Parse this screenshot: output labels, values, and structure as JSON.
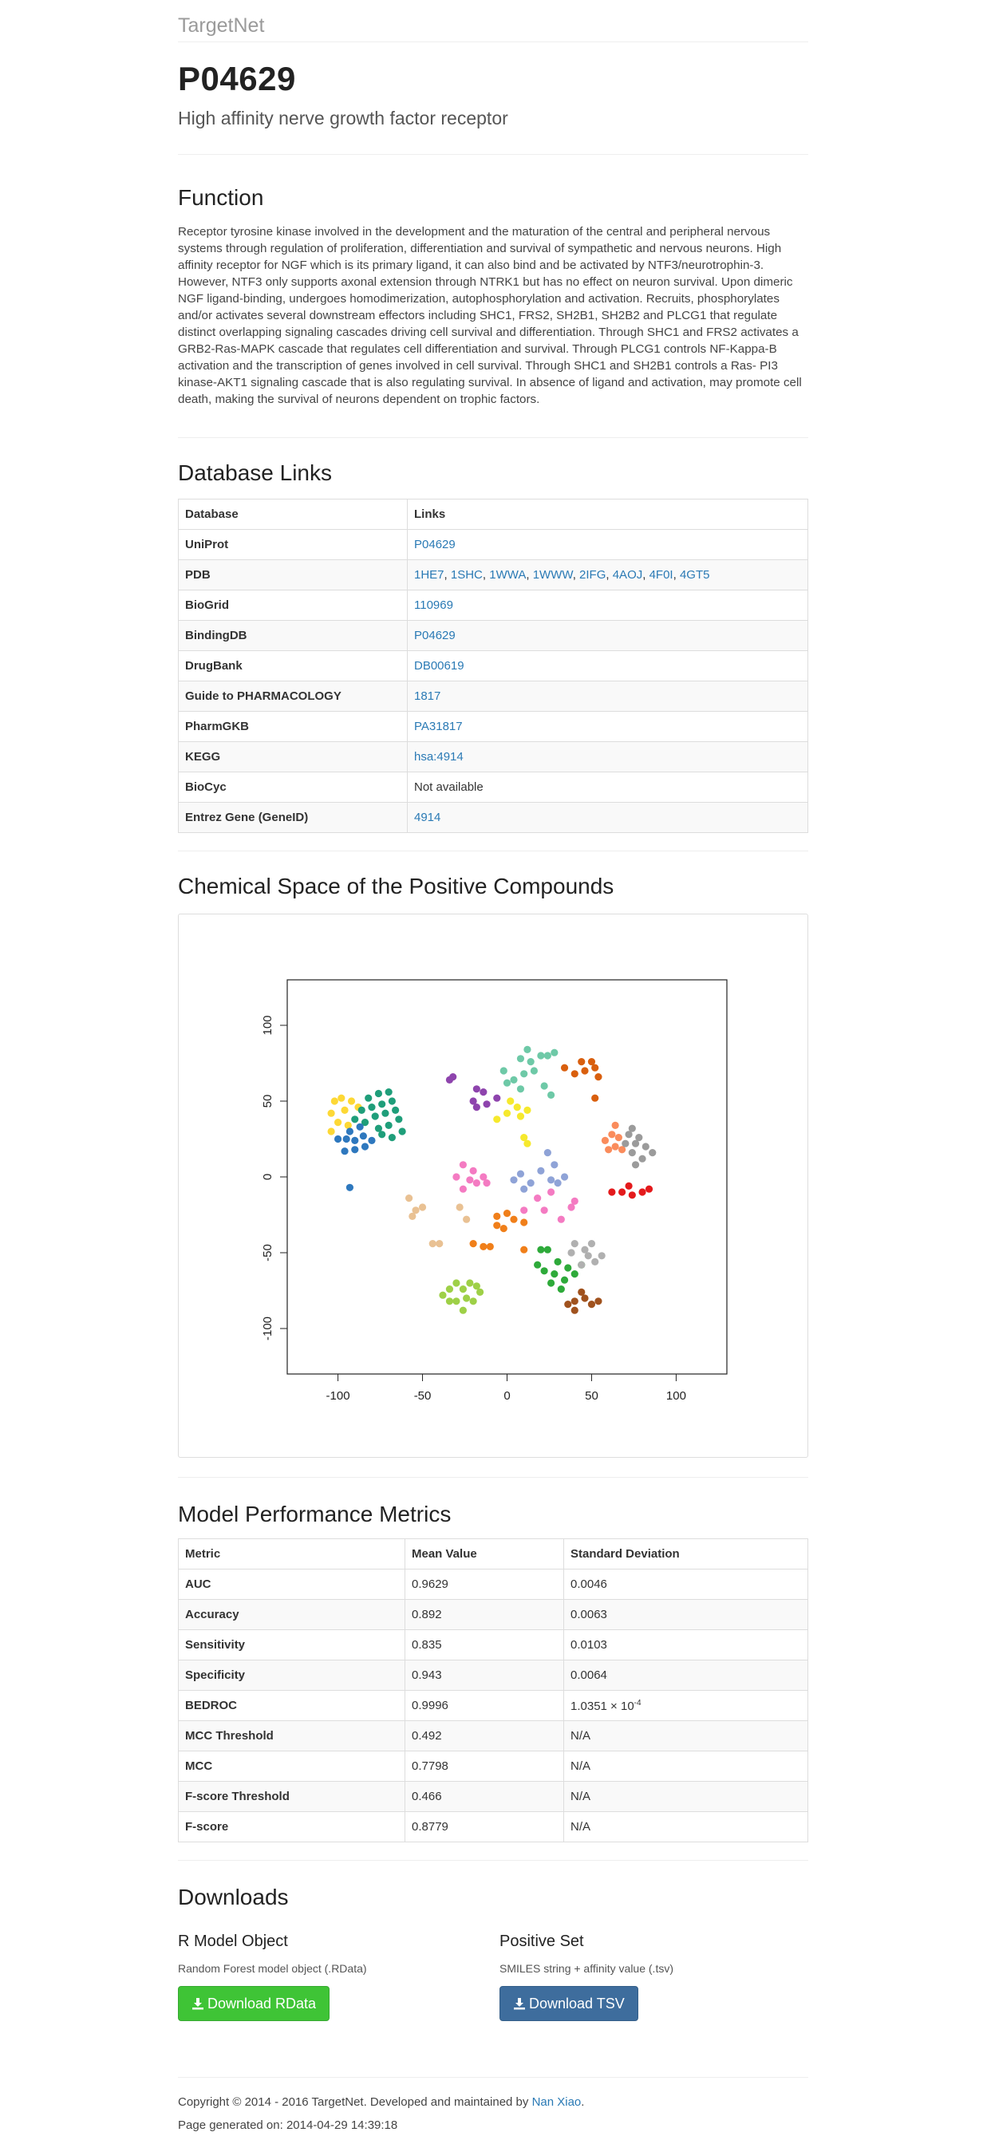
{
  "brand": "TargetNet",
  "protein": {
    "accession": "P04629",
    "name": "High affinity nerve growth factor receptor"
  },
  "function": {
    "heading": "Function",
    "text": "Receptor tyrosine kinase involved in the development and the maturation of the central and peripheral nervous systems through regulation of proliferation, differentiation and survival of sympathetic and nervous neurons. High affinity receptor for NGF which is its primary ligand, it can also bind and be activated by NTF3/neurotrophin-3. However, NTF3 only supports axonal extension through NTRK1 but has no effect on neuron survival. Upon dimeric NGF ligand-binding, undergoes homodimerization, autophosphorylation and activation. Recruits, phosphorylates and/or activates several downstream effectors including SHC1, FRS2, SH2B1, SH2B2 and PLCG1 that regulate distinct overlapping signaling cascades driving cell survival and differentiation. Through SHC1 and FRS2 activates a GRB2-Ras-MAPK cascade that regulates cell differentiation and survival. Through PLCG1 controls NF-Kappa-B activation and the transcription of genes involved in cell survival. Through SHC1 and SH2B1 controls a Ras- PI3 kinase-AKT1 signaling cascade that is also regulating survival. In absence of ligand and activation, may promote cell death, making the survival of neurons dependent on trophic factors."
  },
  "db_links": {
    "heading": "Database Links",
    "col_database": "Database",
    "col_links": "Links",
    "rows": [
      {
        "db": "UniProt",
        "links": [
          "P04629"
        ]
      },
      {
        "db": "PDB",
        "links": [
          "1HE7",
          "1SHC",
          "1WWA",
          "1WWW",
          "2IFG",
          "4AOJ",
          "4F0I",
          "4GT5"
        ]
      },
      {
        "db": "BioGrid",
        "links": [
          "110969"
        ]
      },
      {
        "db": "BindingDB",
        "links": [
          "P04629"
        ]
      },
      {
        "db": "DrugBank",
        "links": [
          "DB00619"
        ]
      },
      {
        "db": "Guide to PHARMACOLOGY",
        "links": [
          "1817"
        ]
      },
      {
        "db": "PharmGKB",
        "links": [
          "PA31817"
        ]
      },
      {
        "db": "KEGG",
        "links": [
          "hsa:4914"
        ]
      },
      {
        "db": "BioCyc",
        "text": "Not available"
      },
      {
        "db": "Entrez Gene (GeneID)",
        "links": [
          "4914"
        ]
      }
    ]
  },
  "chemical_space": {
    "heading": "Chemical Space of the Positive Compounds"
  },
  "chart_data": {
    "type": "scatter",
    "title": "",
    "xlabel": "",
    "ylabel": "",
    "xlim": [
      -130,
      130
    ],
    "ylim": [
      -130,
      130
    ],
    "x_ticks": [
      -100,
      -50,
      0,
      50,
      100
    ],
    "y_ticks": [
      -100,
      -50,
      0,
      50,
      100
    ],
    "grid": false,
    "series": [
      {
        "color": "#fdd835",
        "points": [
          [
            -102,
            50
          ],
          [
            -98,
            52
          ],
          [
            -104,
            42
          ],
          [
            -96,
            44
          ],
          [
            -100,
            36
          ],
          [
            -104,
            30
          ],
          [
            -94,
            34
          ],
          [
            -92,
            50
          ],
          [
            -88,
            46
          ]
        ]
      },
      {
        "color": "#1f9e7a",
        "points": [
          [
            -82,
            52
          ],
          [
            -76,
            55
          ],
          [
            -70,
            56
          ],
          [
            -68,
            50
          ],
          [
            -74,
            48
          ],
          [
            -80,
            46
          ],
          [
            -86,
            44
          ],
          [
            -78,
            40
          ],
          [
            -72,
            42
          ],
          [
            -66,
            44
          ],
          [
            -64,
            38
          ],
          [
            -70,
            34
          ],
          [
            -76,
            32
          ],
          [
            -84,
            36
          ],
          [
            -62,
            30
          ],
          [
            -68,
            26
          ],
          [
            -74,
            28
          ],
          [
            -90,
            38
          ]
        ]
      },
      {
        "color": "#2e78be",
        "points": [
          [
            -100,
            25
          ],
          [
            -95,
            25
          ],
          [
            -90,
            24
          ],
          [
            -85,
            27
          ],
          [
            -80,
            24
          ],
          [
            -84,
            20
          ],
          [
            -90,
            18
          ],
          [
            -96,
            17
          ],
          [
            -93,
            30
          ],
          [
            -87,
            33
          ],
          [
            -93,
            -7
          ]
        ]
      },
      {
        "color": "#6ec9a7",
        "points": [
          [
            8,
            78
          ],
          [
            14,
            76
          ],
          [
            20,
            80
          ],
          [
            24,
            80
          ],
          [
            28,
            82
          ],
          [
            12,
            84
          ],
          [
            -2,
            70
          ],
          [
            4,
            64
          ],
          [
            10,
            68
          ],
          [
            16,
            70
          ],
          [
            0,
            62
          ],
          [
            8,
            58
          ],
          [
            22,
            60
          ],
          [
            26,
            54
          ]
        ]
      },
      {
        "color": "#d95f0e",
        "points": [
          [
            34,
            72
          ],
          [
            40,
            68
          ],
          [
            46,
            70
          ],
          [
            52,
            72
          ],
          [
            50,
            76
          ],
          [
            44,
            76
          ],
          [
            54,
            66
          ],
          [
            52,
            52
          ]
        ]
      },
      {
        "color": "#8e44ad",
        "points": [
          [
            -34,
            64
          ],
          [
            -32,
            66
          ],
          [
            -18,
            58
          ],
          [
            -14,
            56
          ],
          [
            -20,
            50
          ],
          [
            -12,
            48
          ],
          [
            -6,
            52
          ],
          [
            -18,
            46
          ]
        ]
      },
      {
        "color": "#f6e92d",
        "points": [
          [
            2,
            50
          ],
          [
            6,
            46
          ],
          [
            0,
            42
          ],
          [
            8,
            40
          ],
          [
            12,
            44
          ],
          [
            -6,
            38
          ],
          [
            10,
            26
          ],
          [
            12,
            22
          ]
        ]
      },
      {
        "color": "#fa8c5c",
        "points": [
          [
            58,
            24
          ],
          [
            62,
            28
          ],
          [
            66,
            26
          ],
          [
            60,
            18
          ],
          [
            64,
            20
          ],
          [
            68,
            18
          ],
          [
            64,
            34
          ]
        ]
      },
      {
        "color": "#9b9b9b",
        "points": [
          [
            72,
            28
          ],
          [
            78,
            26
          ],
          [
            76,
            22
          ],
          [
            82,
            20
          ],
          [
            86,
            16
          ],
          [
            80,
            12
          ],
          [
            74,
            16
          ],
          [
            70,
            22
          ],
          [
            74,
            32
          ],
          [
            76,
            8
          ]
        ]
      },
      {
        "color": "#e41a1c",
        "points": [
          [
            62,
            -10
          ],
          [
            68,
            -10
          ],
          [
            74,
            -12
          ],
          [
            80,
            -10
          ],
          [
            84,
            -8
          ],
          [
            72,
            -6
          ]
        ]
      },
      {
        "color": "#f47bc2",
        "points": [
          [
            -30,
            0
          ],
          [
            -26,
            8
          ],
          [
            -20,
            4
          ],
          [
            -14,
            0
          ],
          [
            -18,
            -4
          ],
          [
            -26,
            -8
          ],
          [
            -22,
            -2
          ],
          [
            -12,
            -4
          ],
          [
            18,
            -14
          ],
          [
            22,
            -22
          ],
          [
            32,
            -28
          ],
          [
            38,
            -20
          ],
          [
            40,
            -16
          ],
          [
            10,
            -22
          ],
          [
            26,
            -10
          ]
        ]
      },
      {
        "color": "#8fa3d7",
        "points": [
          [
            4,
            -2
          ],
          [
            8,
            2
          ],
          [
            14,
            -4
          ],
          [
            10,
            -8
          ],
          [
            20,
            4
          ],
          [
            26,
            -2
          ],
          [
            30,
            -4
          ],
          [
            34,
            0
          ],
          [
            24,
            16
          ],
          [
            28,
            8
          ]
        ]
      },
      {
        "color": "#e9c193",
        "points": [
          [
            -58,
            -14
          ],
          [
            -54,
            -22
          ],
          [
            -50,
            -20
          ],
          [
            -56,
            -26
          ],
          [
            -28,
            -20
          ],
          [
            -24,
            -28
          ],
          [
            -40,
            -44
          ],
          [
            -44,
            -44
          ]
        ]
      },
      {
        "color": "#f07f1a",
        "points": [
          [
            -6,
            -26
          ],
          [
            0,
            -24
          ],
          [
            4,
            -28
          ],
          [
            -2,
            -34
          ],
          [
            -6,
            -32
          ],
          [
            10,
            -30
          ],
          [
            -14,
            -46
          ],
          [
            -10,
            -46
          ],
          [
            -20,
            -44
          ],
          [
            10,
            -48
          ]
        ]
      },
      {
        "color": "#2eaa3a",
        "points": [
          [
            20,
            -48
          ],
          [
            24,
            -48
          ],
          [
            30,
            -56
          ],
          [
            22,
            -62
          ],
          [
            28,
            -64
          ],
          [
            34,
            -68
          ],
          [
            26,
            -70
          ],
          [
            32,
            -74
          ],
          [
            36,
            -60
          ],
          [
            40,
            -64
          ],
          [
            44,
            -58
          ],
          [
            18,
            -58
          ]
        ]
      },
      {
        "color": "#b0b0b0",
        "points": [
          [
            40,
            -44
          ],
          [
            46,
            -48
          ],
          [
            50,
            -44
          ],
          [
            48,
            -52
          ],
          [
            52,
            -56
          ],
          [
            44,
            -58
          ],
          [
            38,
            -50
          ],
          [
            56,
            -52
          ]
        ]
      },
      {
        "color": "#9ed047",
        "points": [
          [
            -38,
            -78
          ],
          [
            -34,
            -74
          ],
          [
            -30,
            -70
          ],
          [
            -26,
            -74
          ],
          [
            -22,
            -70
          ],
          [
            -18,
            -72
          ],
          [
            -24,
            -80
          ],
          [
            -30,
            -82
          ],
          [
            -20,
            -82
          ],
          [
            -16,
            -76
          ],
          [
            -34,
            -82
          ],
          [
            -26,
            -88
          ]
        ]
      },
      {
        "color": "#a0521e",
        "points": [
          [
            36,
            -84
          ],
          [
            40,
            -82
          ],
          [
            46,
            -80
          ],
          [
            50,
            -84
          ],
          [
            54,
            -82
          ],
          [
            44,
            -76
          ],
          [
            40,
            -88
          ]
        ]
      }
    ]
  },
  "metrics": {
    "heading": "Model Performance Metrics",
    "col_metric": "Metric",
    "col_mean": "Mean Value",
    "col_sd": "Standard Deviation",
    "rows": [
      {
        "metric": "AUC",
        "mean": "0.9629",
        "sd": "0.0046"
      },
      {
        "metric": "Accuracy",
        "mean": "0.892",
        "sd": "0.0063"
      },
      {
        "metric": "Sensitivity",
        "mean": "0.835",
        "sd": "0.0103"
      },
      {
        "metric": "Specificity",
        "mean": "0.943",
        "sd": "0.0064"
      },
      {
        "metric": "BEDROC",
        "mean": "0.9996",
        "sd": "1.0351 × 10",
        "sd_exp": "-4"
      },
      {
        "metric": "MCC Threshold",
        "mean": "0.492",
        "sd": "N/A"
      },
      {
        "metric": "MCC",
        "mean": "0.7798",
        "sd": "N/A"
      },
      {
        "metric": "F-score Threshold",
        "mean": "0.466",
        "sd": "N/A"
      },
      {
        "metric": "F-score",
        "mean": "0.8779",
        "sd": "N/A"
      }
    ]
  },
  "downloads": {
    "heading": "Downloads",
    "rmodel_title": "R Model Object",
    "rmodel_desc": "Random Forest model object (.RData)",
    "rmodel_button": "Download RData",
    "posset_title": "Positive Set",
    "posset_desc": "SMILES string + affinity value (.tsv)",
    "posset_button": "Download TSV",
    "button_color_green": "#3fc436",
    "button_color_blue": "#3e6d9d",
    "icon": "download-icon"
  },
  "footer": {
    "copyright_prefix": "Copyright © 2014 - 2016 TargetNet. Developed and maintained by ",
    "author": "Nan Xiao",
    "copyright_suffix": ".",
    "generated": "Page generated on: 2014-04-29 14:39:18"
  }
}
